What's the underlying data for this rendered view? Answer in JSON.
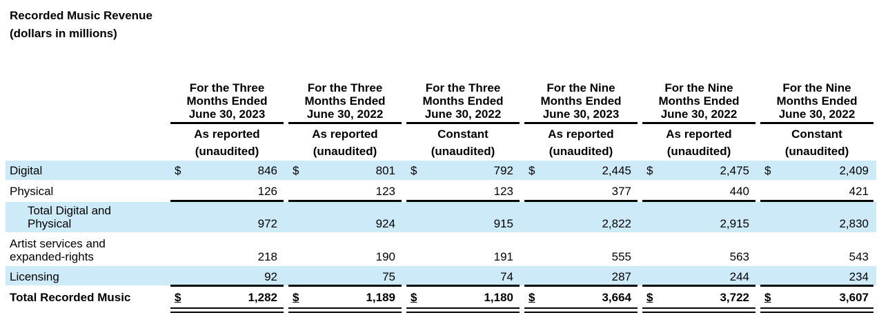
{
  "title": {
    "line1": "Recorded Music Revenue",
    "line2": "(dollars in millions)"
  },
  "columns": [
    {
      "period": [
        "For the Three",
        "Months Ended",
        "June 30, 2023"
      ],
      "basis": "As reported",
      "status": "(unaudited)"
    },
    {
      "period": [
        "For the Three",
        "Months Ended",
        "June 30, 2022"
      ],
      "basis": "As reported",
      "status": "(unaudited)"
    },
    {
      "period": [
        "For the Three",
        "Months Ended",
        "June 30, 2022"
      ],
      "basis": "Constant",
      "status": "(unaudited)"
    },
    {
      "period": [
        "For the Nine",
        "Months Ended",
        "June 30, 2023"
      ],
      "basis": "As reported",
      "status": "(unaudited)"
    },
    {
      "period": [
        "For the Nine",
        "Months Ended",
        "June 30, 2022"
      ],
      "basis": "As reported",
      "status": "(unaudited)"
    },
    {
      "period": [
        "For the Nine",
        "Months Ended",
        "June 30, 2022"
      ],
      "basis": "Constant",
      "status": "(unaudited)"
    }
  ],
  "currency_symbol": "$",
  "rows": [
    {
      "label": [
        "Digital"
      ],
      "values": [
        "846",
        "801",
        "792",
        "2,445",
        "2,475",
        "2,409"
      ]
    },
    {
      "label": [
        "Physical"
      ],
      "values": [
        "126",
        "123",
        "123",
        "377",
        "440",
        "421"
      ]
    },
    {
      "label": [
        "Total Digital and",
        "Physical"
      ],
      "values": [
        "972",
        "924",
        "915",
        "2,822",
        "2,915",
        "2,830"
      ]
    },
    {
      "label": [
        "Artist services and",
        "expanded-rights"
      ],
      "values": [
        "218",
        "190",
        "191",
        "555",
        "563",
        "543"
      ]
    },
    {
      "label": [
        "Licensing"
      ],
      "values": [
        "92",
        "75",
        "74",
        "287",
        "244",
        "234"
      ]
    },
    {
      "label": [
        "Total Recorded Music"
      ],
      "values": [
        "1,282",
        "1,189",
        "1,180",
        "3,664",
        "3,722",
        "3,607"
      ]
    }
  ],
  "colors": {
    "shade": "#cdeaf8"
  }
}
